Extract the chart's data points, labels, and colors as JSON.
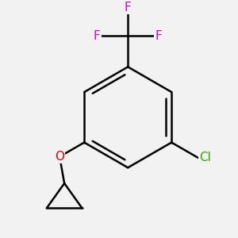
{
  "background_color": "#f2f2f2",
  "bond_color": "#000000",
  "F_color": "#cc00cc",
  "O_color": "#dd0000",
  "Cl_color": "#33aa00",
  "bond_width": 1.8,
  "figsize": [
    3.0,
    3.0
  ],
  "dpi": 100,
  "xlim": [
    -1.8,
    1.8
  ],
  "ylim": [
    -2.0,
    1.8
  ]
}
